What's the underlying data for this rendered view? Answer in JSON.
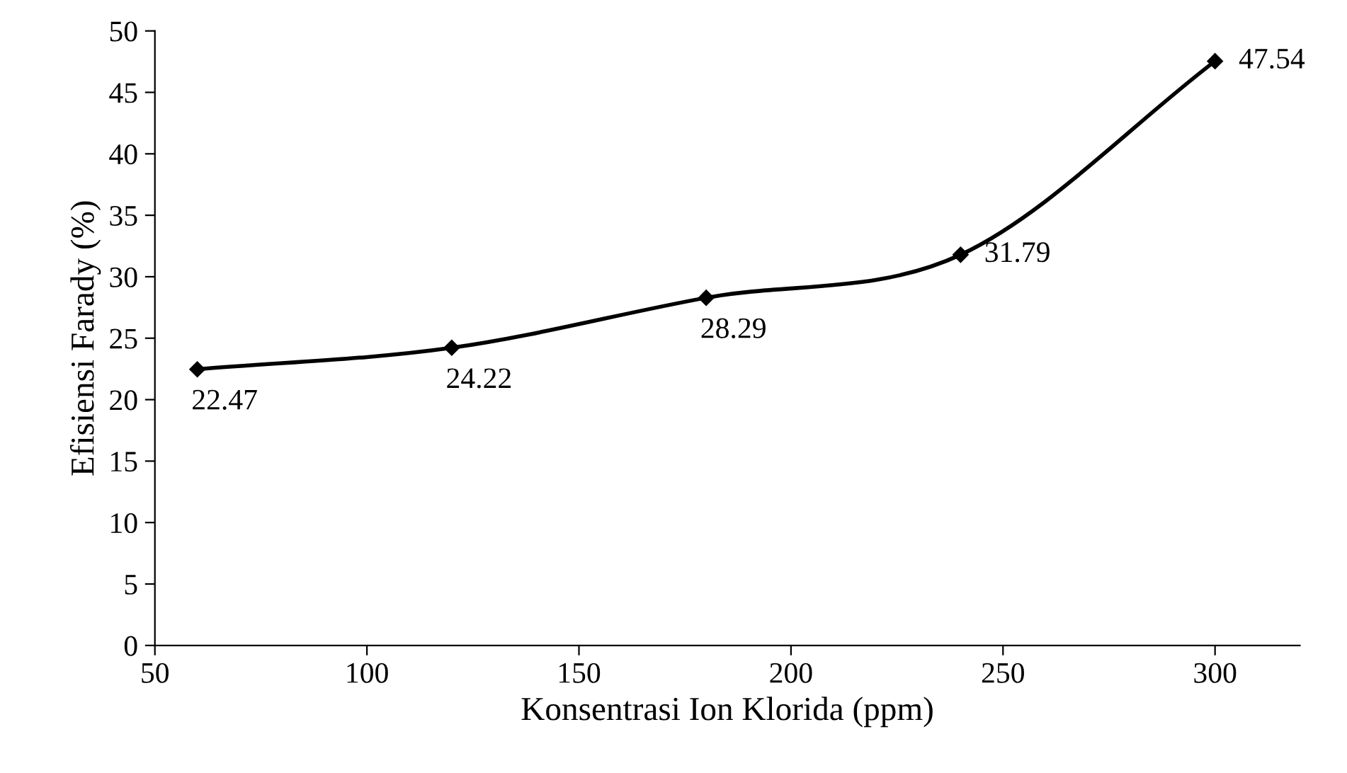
{
  "chart_data": {
    "type": "line",
    "xlabel": "Konsentrasi Ion Klorida (ppm)",
    "ylabel": "Efisiensi Farady (%)",
    "x": [
      60,
      120,
      180,
      240,
      300
    ],
    "series": [
      {
        "color": "#000000",
        "values": [
          22.47,
          24.22,
          28.29,
          31.79,
          47.54
        ]
      }
    ],
    "xlim": [
      50,
      320
    ],
    "xticks": [
      50,
      100,
      150,
      200,
      250,
      300
    ],
    "ylim": [
      0,
      50
    ],
    "yticks": [
      0,
      5,
      10,
      15,
      20,
      25,
      30,
      35,
      40,
      45,
      50
    ],
    "grid": false,
    "marker": "diamond",
    "line_style": "solid",
    "data_labels": true
  }
}
